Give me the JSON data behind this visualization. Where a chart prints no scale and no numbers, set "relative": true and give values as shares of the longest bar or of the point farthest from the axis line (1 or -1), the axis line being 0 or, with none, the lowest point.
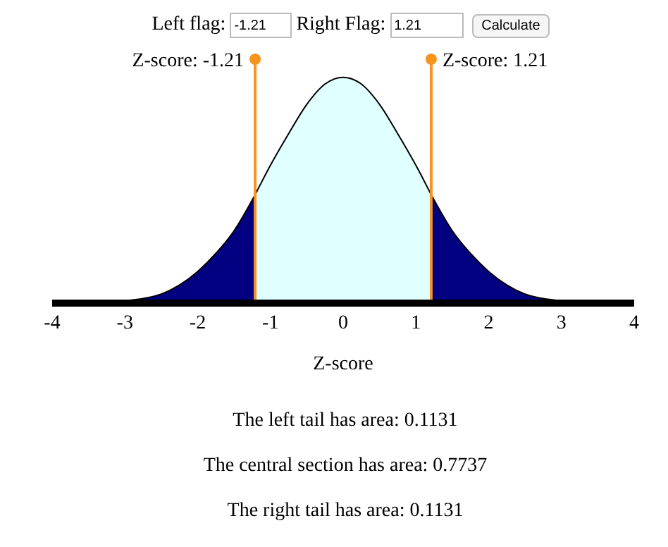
{
  "chart_data": {
    "type": "area",
    "relative": true,
    "xlabel": "Z-score",
    "xlim": [
      -4,
      4
    ],
    "xticks": [
      -4,
      -3,
      -2,
      -1,
      0,
      1,
      2,
      3,
      4
    ],
    "series": [
      {
        "color": "#000080",
        "x": [
          -4,
          -3.5,
          -3,
          -2.75,
          -2.5,
          -2.25,
          -2,
          -1.75,
          -1.5,
          -1.21
        ],
        "values": [
          0,
          0,
          0.01,
          0.02,
          0.04,
          0.08,
          0.14,
          0.22,
          0.32,
          0.48
        ]
      },
      {
        "color": "#e0ffff",
        "x": [
          -1.21,
          -1,
          -0.75,
          -0.5,
          -0.25,
          0,
          0.25,
          0.5,
          0.75,
          1,
          1.21
        ],
        "values": [
          0.48,
          0.61,
          0.75,
          0.88,
          0.97,
          1,
          0.97,
          0.88,
          0.75,
          0.61,
          0.48
        ]
      },
      {
        "color": "#000080",
        "x": [
          1.21,
          1.5,
          1.75,
          2,
          2.25,
          2.5,
          2.75,
          3,
          3.5,
          4
        ],
        "values": [
          0.48,
          0.32,
          0.22,
          0.14,
          0.08,
          0.04,
          0.02,
          0.01,
          0,
          0
        ]
      }
    ],
    "ref_lines": [
      {
        "axis": "x",
        "value": -1.21,
        "label": "Z-score: -1.21",
        "color": "#f7941d"
      },
      {
        "axis": "x",
        "value": 1.21,
        "label": "Z-score: 1.21",
        "color": "#f7941d"
      }
    ],
    "annotations": [
      "Left flag:",
      "-1.21",
      "Right Flag:",
      "1.21",
      "Calculate",
      "The left tail has area: 0.1131",
      "The central section has area: 0.7737",
      "The right tail has area: 0.1131"
    ]
  }
}
